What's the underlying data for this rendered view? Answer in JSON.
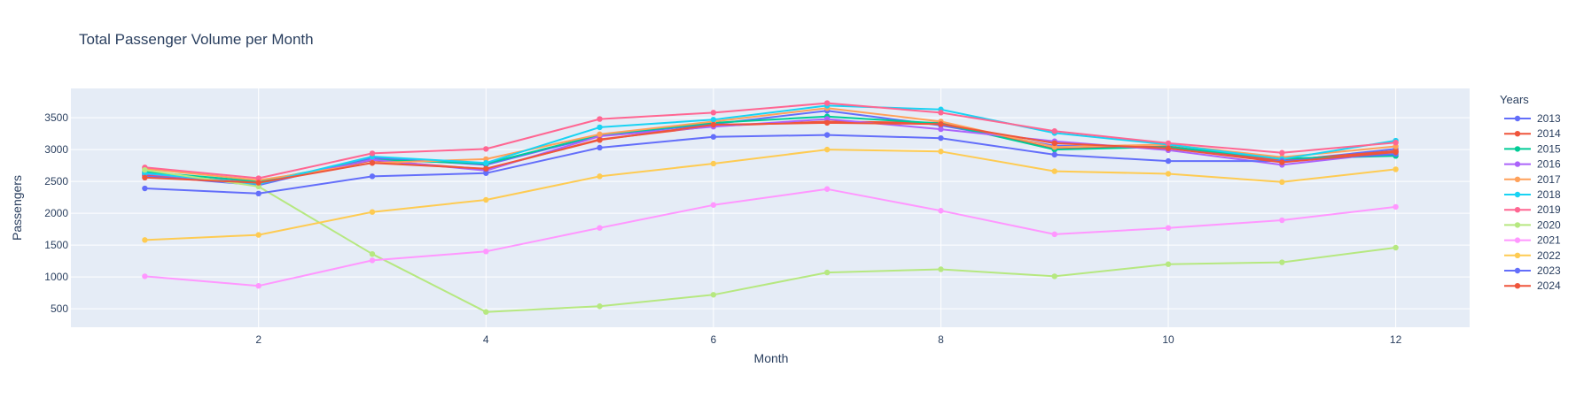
{
  "chart_data": {
    "type": "line",
    "title": "Total Passenger Volume per Month",
    "xlabel": "Month",
    "ylabel": "Passengers",
    "xlim": [
      0.35,
      12.65
    ],
    "ylim": [
      210,
      3960
    ],
    "xticks": [
      2,
      4,
      6,
      8,
      10,
      12
    ],
    "yticks": [
      500,
      1000,
      1500,
      2000,
      2500,
      3000,
      3500
    ],
    "grid": true,
    "legend_title": "Years",
    "legend_position": "right",
    "x": [
      1,
      2,
      3,
      4,
      5,
      6,
      7,
      8,
      9,
      10,
      11,
      12
    ],
    "series": [
      {
        "name": "2013",
        "color": "#636efa",
        "values": [
          2590,
          2440,
          2870,
          2760,
          3220,
          3400,
          3610,
          3380,
          3060,
          3040,
          2820,
          3010
        ]
      },
      {
        "name": "2014",
        "color": "#ef553b",
        "values": [
          2610,
          2480,
          2830,
          2690,
          3160,
          3370,
          3440,
          3420,
          3010,
          3050,
          2830,
          2980
        ]
      },
      {
        "name": "2015",
        "color": "#00cc96",
        "values": [
          2650,
          2500,
          2840,
          2780,
          3230,
          3420,
          3520,
          3410,
          3000,
          3040,
          2860,
          2900
        ]
      },
      {
        "name": "2016",
        "color": "#ab63fa",
        "values": [
          2620,
          2470,
          2840,
          2670,
          3210,
          3360,
          3480,
          3320,
          3130,
          2990,
          2760,
          2960
        ]
      },
      {
        "name": "2017",
        "color": "#ffa15a",
        "values": [
          2700,
          2520,
          2790,
          2850,
          3240,
          3440,
          3650,
          3440,
          3040,
          3080,
          2880,
          3050
        ]
      },
      {
        "name": "2018",
        "color": "#19d3f3",
        "values": [
          2630,
          2460,
          2890,
          2790,
          3350,
          3470,
          3690,
          3630,
          3260,
          3080,
          2850,
          3140
        ]
      },
      {
        "name": "2019",
        "color": "#ff6692",
        "values": [
          2720,
          2550,
          2940,
          3010,
          3480,
          3580,
          3730,
          3580,
          3290,
          3100,
          2950,
          3110
        ]
      },
      {
        "name": "2020",
        "color": "#b6e880",
        "values": [
          2680,
          2420,
          1360,
          450,
          540,
          720,
          1070,
          1120,
          1010,
          1200,
          1230,
          1460
        ]
      },
      {
        "name": "2021",
        "color": "#ff97ff",
        "values": [
          1010,
          860,
          1260,
          1400,
          1770,
          2130,
          2380,
          2040,
          1670,
          1770,
          1890,
          2100
        ]
      },
      {
        "name": "2022",
        "color": "#fecb52",
        "values": [
          1580,
          1660,
          2020,
          2210,
          2580,
          2780,
          3000,
          2970,
          2660,
          2620,
          2490,
          2690
        ]
      },
      {
        "name": "2023",
        "color": "#636efa",
        "values": [
          2390,
          2310,
          2580,
          2630,
          3030,
          3200,
          3230,
          3180,
          2920,
          2820,
          2820,
          2930
        ]
      },
      {
        "name": "2024",
        "color": "#ef553b",
        "values": [
          2560,
          2480,
          2790,
          2700,
          3150,
          3390,
          3420,
          3400,
          3100,
          3020,
          2800,
          2960
        ]
      }
    ]
  }
}
